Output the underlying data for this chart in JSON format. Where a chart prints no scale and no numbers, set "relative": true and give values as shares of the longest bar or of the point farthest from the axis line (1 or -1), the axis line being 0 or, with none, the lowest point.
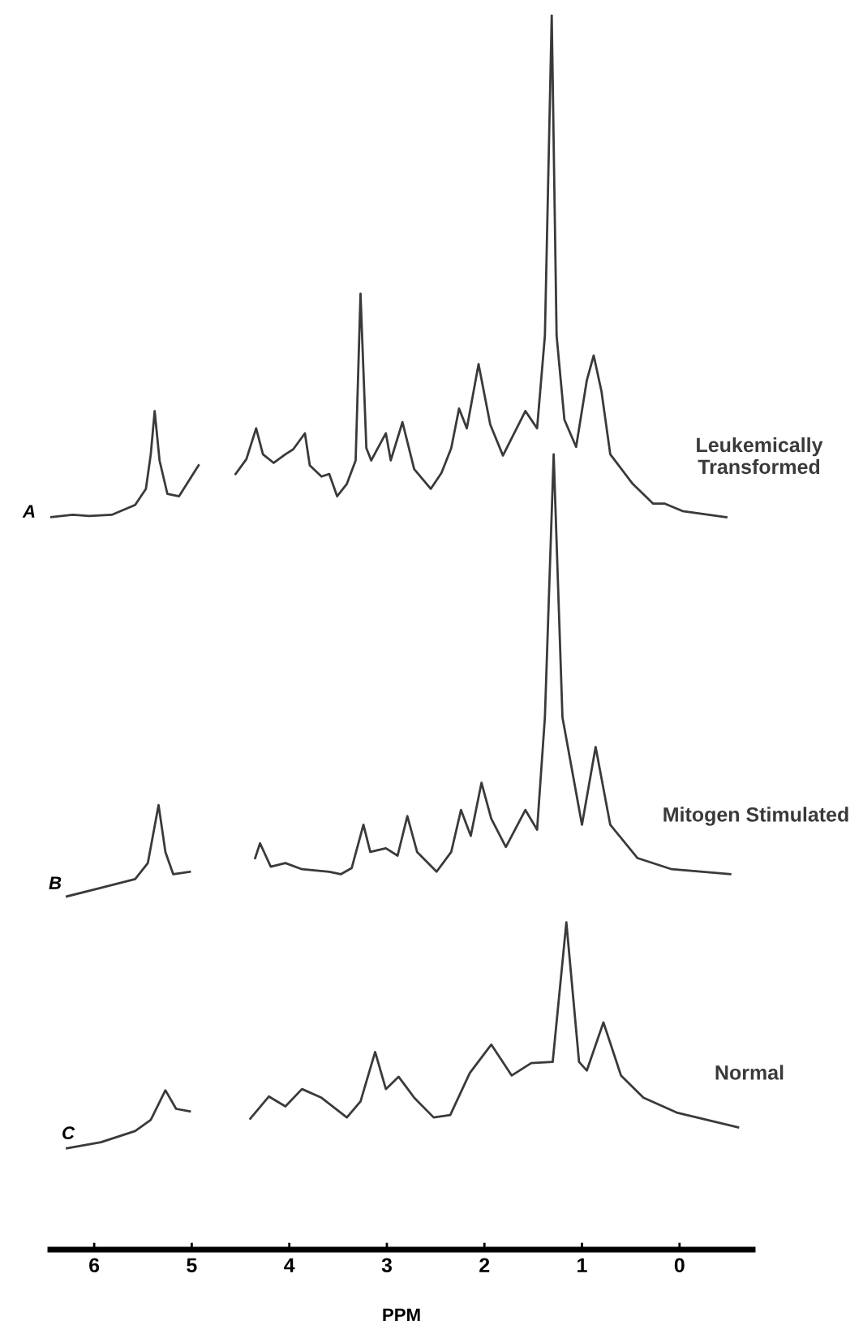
{
  "chart_data": {
    "type": "line",
    "relative": true,
    "xlim": [
      6.45,
      -0.75
    ],
    "xticks": [
      6,
      5,
      4,
      3,
      2,
      1,
      0
    ],
    "xlabel": "PPM",
    "tick_labels": "x",
    "annotations": [
      "A",
      "B",
      "C"
    ],
    "series": [
      {
        "name": "Leukemically Transformed",
        "color": "#3a3a3a",
        "x": [
          6.45,
          6.22,
          6.05,
          5.82,
          5.58,
          5.47,
          5.42,
          5.38,
          5.33,
          5.25,
          5.13,
          4.93,
          4.75,
          4.55,
          4.44,
          4.34,
          4.27,
          4.16,
          4.04,
          3.96,
          3.84,
          3.79,
          3.67,
          3.59,
          3.51,
          3.41,
          3.32,
          3.27,
          3.21,
          3.16,
          3.01,
          2.96,
          2.84,
          2.72,
          2.55,
          2.44,
          2.34,
          2.26,
          2.18,
          2.06,
          1.94,
          1.81,
          1.58,
          1.46,
          1.38,
          1.31,
          1.26,
          1.18,
          1.06,
          0.95,
          0.88,
          0.8,
          0.71,
          0.48,
          0.27,
          0.15,
          -0.03,
          -0.48
        ],
        "values": [
          0.593,
          0.595,
          0.594,
          0.595,
          0.603,
          0.616,
          0.644,
          0.679,
          0.639,
          0.612,
          0.61,
          0.635,
          null,
          0.628,
          0.64,
          0.665,
          0.644,
          0.637,
          0.644,
          0.648,
          0.661,
          0.635,
          0.626,
          0.628,
          0.61,
          0.62,
          0.639,
          0.774,
          0.649,
          0.639,
          0.661,
          0.639,
          0.67,
          0.632,
          0.616,
          0.629,
          0.649,
          0.681,
          0.665,
          0.717,
          0.668,
          0.643,
          0.679,
          0.665,
          0.74,
          1.0,
          0.74,
          0.672,
          0.65,
          0.704,
          0.724,
          0.695,
          0.644,
          0.62,
          0.604,
          0.604,
          0.598,
          0.593
        ]
      },
      {
        "name": "Mitogen Stimulated",
        "color": "#3a3a3a",
        "x": [
          6.28,
          5.93,
          5.58,
          5.45,
          5.34,
          5.27,
          5.19,
          5.02,
          4.7,
          4.35,
          4.3,
          4.19,
          4.04,
          3.87,
          3.59,
          3.47,
          3.36,
          3.24,
          3.17,
          3.01,
          2.89,
          2.79,
          2.69,
          2.49,
          2.34,
          2.24,
          2.14,
          2.03,
          1.93,
          1.78,
          1.58,
          1.46,
          1.38,
          1.29,
          1.2,
          1.0,
          0.86,
          0.71,
          0.43,
          0.08,
          -0.52
        ],
        "values": [
          0.286,
          0.293,
          0.3,
          0.313,
          0.36,
          0.322,
          0.304,
          0.306,
          null,
          0.317,
          0.329,
          0.31,
          0.313,
          0.308,
          0.306,
          0.304,
          0.309,
          0.344,
          0.322,
          0.325,
          0.319,
          0.351,
          0.322,
          0.306,
          0.322,
          0.356,
          0.335,
          0.378,
          0.349,
          0.326,
          0.356,
          0.34,
          0.431,
          0.644,
          0.431,
          0.344,
          0.407,
          0.344,
          0.317,
          0.308,
          0.304
        ]
      },
      {
        "name": "Normal",
        "color": "#3a3a3a",
        "x": [
          6.28,
          5.93,
          5.58,
          5.42,
          5.27,
          5.16,
          5.02,
          4.7,
          4.4,
          4.21,
          4.04,
          3.87,
          3.67,
          3.41,
          3.27,
          3.12,
          3.01,
          2.88,
          2.72,
          2.52,
          2.35,
          2.15,
          1.93,
          1.72,
          1.52,
          1.3,
          1.16,
          1.03,
          0.95,
          0.78,
          0.6,
          0.37,
          0.03,
          -0.6
        ],
        "values": [
          0.082,
          0.087,
          0.096,
          0.105,
          0.129,
          0.114,
          0.112,
          null,
          0.106,
          0.124,
          0.116,
          0.13,
          0.123,
          0.107,
          0.12,
          0.16,
          0.13,
          0.14,
          0.123,
          0.107,
          0.109,
          0.143,
          0.166,
          0.141,
          0.151,
          0.152,
          0.265,
          0.152,
          0.145,
          0.184,
          0.141,
          0.123,
          0.111,
          0.099
        ]
      }
    ]
  }
}
